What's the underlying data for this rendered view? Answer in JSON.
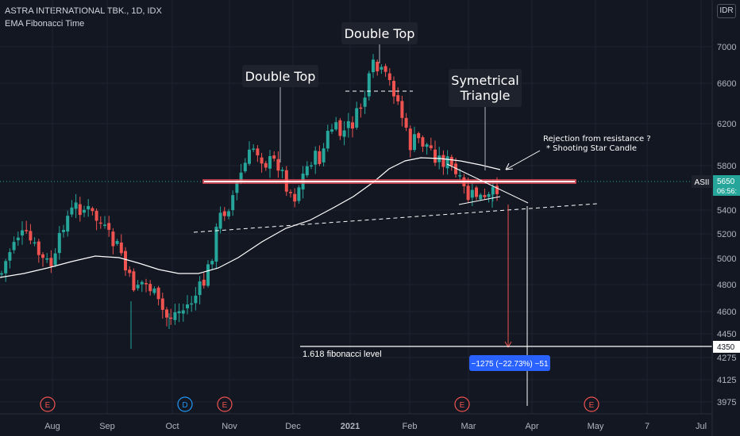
{
  "header": {
    "title": "ASTRA INTERNATIONAL TBK., 1D, IDX",
    "indicator": "EMA Fibonacci Time"
  },
  "currency": "IDR",
  "chart_data": {
    "type": "candlestick",
    "symbol": "ASII",
    "last_price": "5650",
    "countdown": "06:56:",
    "target_label": "4350",
    "yaxis": {
      "ticks": [
        7000,
        6600,
        6200,
        5800,
        5400,
        5200,
        5000,
        4800,
        4600,
        4450,
        4275,
        4125,
        3975
      ]
    },
    "xaxis": {
      "ticks": [
        "Aug",
        "Sep",
        "Oct",
        "Nov",
        "Dec",
        "2021",
        "Feb",
        "Mar",
        "Apr",
        "May",
        "7",
        "Jul"
      ]
    },
    "annotations": [
      {
        "name": "double-top-left",
        "text": "Double Top"
      },
      {
        "name": "double-top-center",
        "text": "Double Top"
      },
      {
        "name": "symetrical-triangle",
        "text": "Symetrical\nTriangle"
      },
      {
        "name": "rejection-note",
        "text": "Rejection from resistance ?\n* Shooting Star Candle"
      },
      {
        "name": "fib-label",
        "text": "1.618 fibonacci level"
      },
      {
        "name": "measure-label",
        "text": "−1275 (−22.73%) −51"
      }
    ],
    "resistance_level": 5650,
    "fib_level": 4350,
    "events": [
      {
        "month": "Aug",
        "type": "E"
      },
      {
        "month": "Oct",
        "type": "D"
      },
      {
        "month": "Nov",
        "type": "E"
      },
      {
        "month": "Mar",
        "type": "E"
      },
      {
        "month": "May",
        "type": "E"
      }
    ],
    "colors": {
      "up": "#26a69a",
      "down": "#ef5350",
      "background": "#131722",
      "ema": "#ffffff",
      "resistance": "#f7525f"
    }
  }
}
